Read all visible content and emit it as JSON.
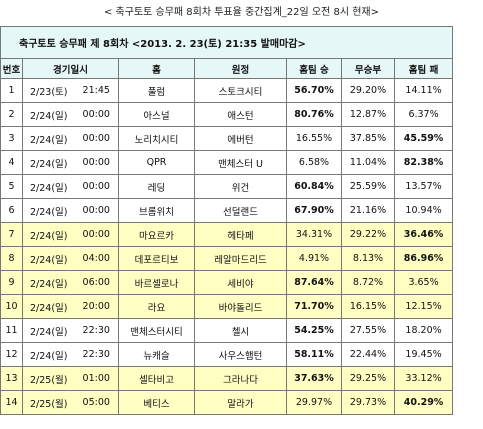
{
  "header": {
    "title": "< 축구토토 승무패 8회차 투표율 중간집계_22일 오전 8시 현재>"
  },
  "table": {
    "caption": "축구토토 승무패 제 8회차 <2013. 2. 23(토) 21:35 발매마감>",
    "columns": [
      "번호",
      "경기일시",
      "홈",
      "원정",
      "홈팀 승",
      "무승부",
      "홈팀 패"
    ],
    "header_fill": "#e6f7f7",
    "rows": [
      {
        "cells": [
          "1",
          "2/23(토)",
          "21:45",
          "풀럼",
          "스토크시티",
          "56.70%",
          "29.20%",
          "14.11%"
        ]
      },
      {
        "cells": [
          "2",
          "2/24(일)",
          "00:00",
          "아스널",
          "애스턴",
          "80.76%",
          "12.87%",
          "6.37%"
        ]
      },
      {
        "cells": [
          "3",
          "2/24(일)",
          "00:00",
          "노리치시티",
          "에버턴",
          "16.55%",
          "37.85%",
          "45.59%"
        ]
      },
      {
        "cells": [
          "4",
          "2/24(일)",
          "00:00",
          "QPR",
          "맨체스터 U",
          "6.58%",
          "11.04%",
          "82.38%"
        ]
      },
      {
        "cells": [
          "5",
          "2/24(일)",
          "00:00",
          "레딩",
          "위건",
          "60.84%",
          "25.59%",
          "13.57%"
        ]
      },
      {
        "cells": [
          "6",
          "2/24(일)",
          "00:00",
          "브롬위치",
          "선덜랜드",
          "67.90%",
          "21.16%",
          "10.94%"
        ]
      },
      {
        "cells": [
          "7",
          "2/24(일)",
          "00:00",
          "마요르카",
          "헤타페",
          "34.31%",
          "29.22%",
          "36.46%"
        ],
        "fill": "#ffffc4"
      },
      {
        "cells": [
          "8",
          "2/24(일)",
          "04:00",
          "데포르티보",
          "레알마드리드",
          "4.91%",
          "8.13%",
          "86.96%"
        ],
        "fill": "#ffffc4"
      },
      {
        "cells": [
          "9",
          "2/24(일)",
          "06:00",
          "바르셀로나",
          "세비야",
          "87.64%",
          "8.72%",
          "3.65%"
        ],
        "fill": "#ffffc4"
      },
      {
        "cells": [
          "10",
          "2/24(일)",
          "20:00",
          "라요",
          "바야돌리드",
          "71.70%",
          "16.15%",
          "12.15%"
        ],
        "fill": "#ffffc4"
      },
      {
        "cells": [
          "11",
          "2/24(일)",
          "22:30",
          "맨체스터시티",
          "첼시",
          "54.25%",
          "27.55%",
          "18.20%"
        ]
      },
      {
        "cells": [
          "12",
          "2/24(일)",
          "22:30",
          "뉴캐슬",
          "사우스햄턴",
          "58.11%",
          "22.44%",
          "19.45%"
        ]
      },
      {
        "cells": [
          "13",
          "2/25(월)",
          "01:00",
          "셀타비고",
          "그라나다",
          "37.63%",
          "29.25%",
          "33.12%"
        ],
        "fill": "#ffffc4"
      },
      {
        "cells": [
          "14",
          "2/25(월)",
          "05:00",
          "베티스",
          "말라가",
          "29.97%",
          "29.73%",
          "40.29%"
        ],
        "fill": "#ffffc4"
      }
    ]
  }
}
